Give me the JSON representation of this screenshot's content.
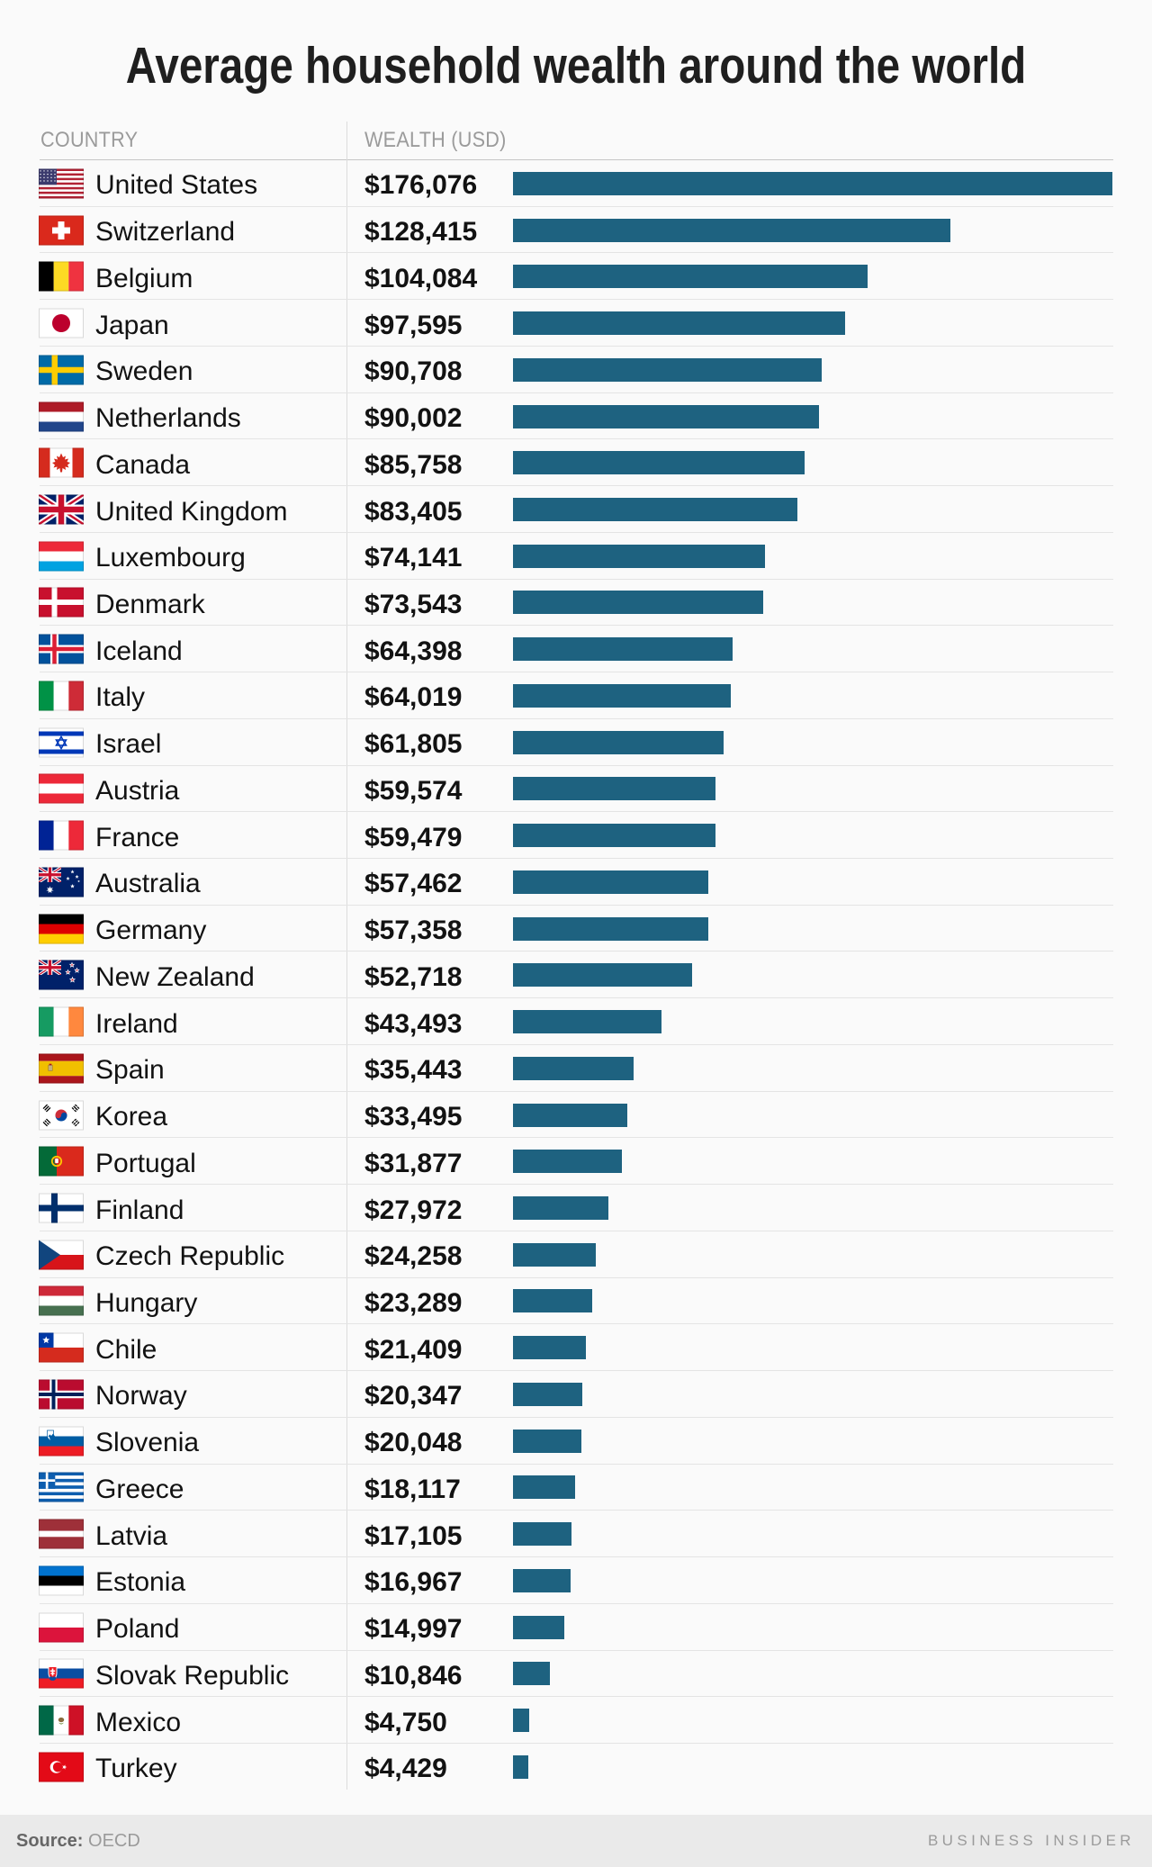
{
  "title": "Average household wealth around the world",
  "table": {
    "country_header": "COUNTRY",
    "wealth_header": "WEALTH (USD)"
  },
  "footer": {
    "source_label": "Source:",
    "source_value": "OECD",
    "brand": "BUSINESS INSIDER"
  },
  "colors": {
    "bar": "#1e6280",
    "footer_bg": "#eaeaea",
    "page_bg": "#fafafa"
  },
  "chart_data": {
    "type": "bar",
    "orientation": "horizontal",
    "title": "Average household wealth around the world",
    "xlabel": "WEALTH (USD)",
    "ylabel": "COUNTRY",
    "xmax": 176076,
    "source": "OECD",
    "categories": [
      "United States",
      "Switzerland",
      "Belgium",
      "Japan",
      "Sweden",
      "Netherlands",
      "Canada",
      "United Kingdom",
      "Luxembourg",
      "Denmark",
      "Iceland",
      "Italy",
      "Israel",
      "Austria",
      "France",
      "Australia",
      "Germany",
      "New Zealand",
      "Ireland",
      "Spain",
      "Korea",
      "Portugal",
      "Finland",
      "Czech Republic",
      "Hungary",
      "Chile",
      "Norway",
      "Slovenia",
      "Greece",
      "Latvia",
      "Estonia",
      "Poland",
      "Slovak Republic",
      "Mexico",
      "Turkey"
    ],
    "values": [
      176076,
      128415,
      104084,
      97595,
      90708,
      90002,
      85758,
      83405,
      74141,
      73543,
      64398,
      64019,
      61805,
      59574,
      59479,
      57462,
      57358,
      52718,
      43493,
      35443,
      33495,
      31877,
      27972,
      24258,
      23289,
      21409,
      20347,
      20048,
      18117,
      17105,
      16967,
      14997,
      10846,
      4750,
      4429
    ],
    "value_labels": [
      "$176,076",
      "$128,415",
      "$104,084",
      "$97,595",
      "$90,708",
      "$90,002",
      "$85,758",
      "$83,405",
      "$74,141",
      "$73,543",
      "$64,398",
      "$64,019",
      "$61,805",
      "$59,574",
      "$59,479",
      "$57,462",
      "$57,358",
      "$52,718",
      "$43,493",
      "$35,443",
      "$33,495",
      "$31,877",
      "$27,972",
      "$24,258",
      "$23,289",
      "$21,409",
      "$20,347",
      "$20,048",
      "$18,117",
      "$17,105",
      "$16,967",
      "$14,997",
      "$10,846",
      "$4,750",
      "$4,429"
    ],
    "flags": [
      "us",
      "ch",
      "be",
      "jp",
      "se",
      "nl",
      "ca",
      "gb",
      "lu",
      "dk",
      "is",
      "it",
      "il",
      "at",
      "fr",
      "au",
      "de",
      "nz",
      "ie",
      "es",
      "kr",
      "pt",
      "fi",
      "cz",
      "hu",
      "cl",
      "no",
      "si",
      "gr",
      "lv",
      "ee",
      "pl",
      "sk",
      "mx",
      "tr"
    ]
  }
}
